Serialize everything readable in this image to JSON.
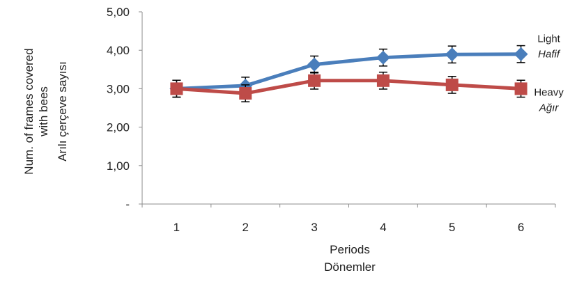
{
  "chart_data": {
    "type": "line",
    "categories": [
      "1",
      "2",
      "3",
      "4",
      "5",
      "6"
    ],
    "ylim": [
      0,
      5
    ],
    "ytick_values": [
      0,
      1,
      2,
      3,
      4,
      5
    ],
    "ytick_labels": [
      "-",
      "1,00",
      "2,00",
      "3,00",
      "4,00",
      "5,00"
    ],
    "xlabel_lines": [
      "Periods",
      "Dönemler"
    ],
    "ylabel_lines": [
      "Num. of frames covered",
      "with bees",
      "Arılı çerçeve sayısı"
    ],
    "grid": false,
    "legend": "inline-right",
    "series": [
      {
        "name": "Light",
        "name_alt": "Hafif",
        "color": "#4a7ebb",
        "marker": "diamond",
        "values": [
          3.0,
          3.08,
          3.63,
          3.81,
          3.89,
          3.9
        ],
        "errors": [
          0.22,
          0.22,
          0.22,
          0.22,
          0.22,
          0.22
        ]
      },
      {
        "name": "Heavy",
        "name_alt": "Ağır",
        "color": "#be4b48",
        "marker": "square",
        "values": [
          3.0,
          2.88,
          3.21,
          3.21,
          3.1,
          3.0
        ],
        "errors": [
          0.22,
          0.22,
          0.22,
          0.22,
          0.22,
          0.22
        ]
      }
    ]
  }
}
